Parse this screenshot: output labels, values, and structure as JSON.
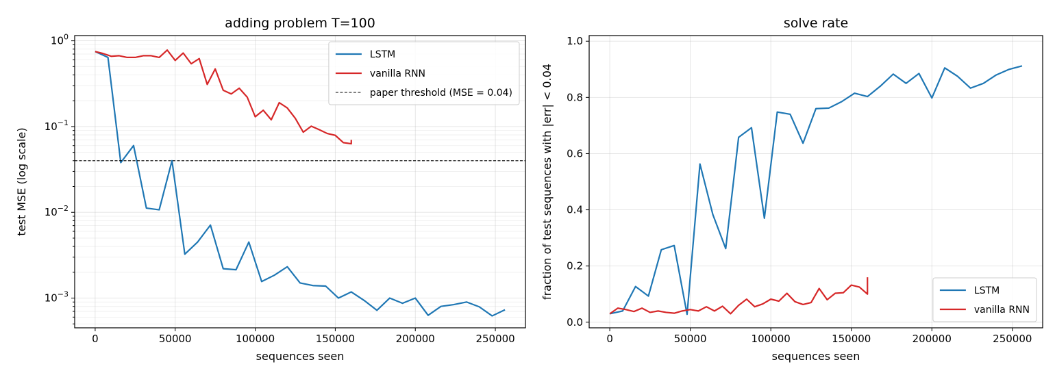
{
  "chart_data": [
    {
      "type": "line",
      "title": "adding problem  T=100",
      "xlabel": "sequences seen",
      "ylabel": "test MSE  (log scale)",
      "yscale": "log",
      "xlim": [
        -12800,
        268800
      ],
      "ylim": [
        0.00045,
        1.15
      ],
      "grid": true,
      "legend_placement": "top-right",
      "xticks": [
        0,
        50000,
        100000,
        150000,
        200000,
        250000
      ],
      "xtick_labels": [
        "0",
        "50000",
        "100000",
        "150000",
        "200000",
        "250000"
      ],
      "yticks": [
        0.001,
        0.01,
        0.1,
        1
      ],
      "ytick_labels": [
        {
          "base": "10",
          "exp": "−3"
        },
        {
          "base": "10",
          "exp": "−2"
        },
        {
          "base": "10",
          "exp": "−1"
        },
        {
          "base": "10",
          "exp": "0"
        }
      ],
      "series": [
        {
          "name": "LSTM",
          "color": "#1f77b4",
          "x": [
            0,
            8000,
            16000,
            24000,
            32000,
            40000,
            48000,
            56000,
            64000,
            72000,
            80000,
            88000,
            96000,
            104000,
            112000,
            120000,
            128000,
            136000,
            144000,
            152000,
            160000,
            168000,
            176000,
            184000,
            192000,
            200000,
            208000,
            216000,
            224000,
            232000,
            240000,
            248000,
            256000
          ],
          "y": [
            0.75,
            0.64,
            0.038,
            0.06,
            0.0112,
            0.0107,
            0.04,
            0.00325,
            0.0045,
            0.0071,
            0.0022,
            0.00214,
            0.0045,
            0.00156,
            0.00185,
            0.00232,
            0.0015,
            0.0014,
            0.00138,
            0.001,
            0.00118,
            0.00094,
            0.00072,
            0.001,
            0.00087,
            0.001,
            0.00063,
            0.0008,
            0.00084,
            0.0009,
            0.00079,
            0.00062,
            0.00073
          ]
        },
        {
          "name": "vanilla RNN",
          "color": "#d62728",
          "x": [
            0,
            5000,
            10000,
            15000,
            20000,
            25000,
            30000,
            35000,
            40000,
            45000,
            50000,
            55000,
            60000,
            65000,
            70000,
            75000,
            80000,
            85000,
            90000,
            95000,
            100000,
            105000,
            110000,
            115000,
            120000,
            125000,
            130000,
            135000,
            140000,
            145000,
            150000,
            155000,
            160000,
            160000
          ],
          "y": [
            0.75,
            0.71,
            0.66,
            0.67,
            0.64,
            0.64,
            0.67,
            0.67,
            0.64,
            0.78,
            0.59,
            0.72,
            0.54,
            0.62,
            0.31,
            0.47,
            0.265,
            0.24,
            0.28,
            0.22,
            0.13,
            0.155,
            0.12,
            0.19,
            0.165,
            0.125,
            0.086,
            0.101,
            0.092,
            0.083,
            0.079,
            0.065,
            0.063,
            0.07
          ]
        },
        {
          "name": "paper threshold (MSE = 0.04)",
          "color": "#000000",
          "style": "dashed",
          "hline": 0.04
        }
      ]
    },
    {
      "type": "line",
      "title": "solve rate",
      "xlabel": "sequences seen",
      "ylabel": "fraction of test sequences with |err| < 0.04",
      "yscale": "linear",
      "xlim": [
        -12800,
        268800
      ],
      "ylim": [
        -0.02,
        1.02
      ],
      "grid": true,
      "legend_placement": "lower-right",
      "xticks": [
        0,
        50000,
        100000,
        150000,
        200000,
        250000
      ],
      "xtick_labels": [
        "0",
        "50000",
        "100000",
        "150000",
        "200000",
        "250000"
      ],
      "yticks": [
        0.0,
        0.2,
        0.4,
        0.6,
        0.8,
        1.0
      ],
      "ytick_labels": [
        "0.0",
        "0.2",
        "0.4",
        "0.6",
        "0.8",
        "1.0"
      ],
      "series": [
        {
          "name": "LSTM",
          "color": "#1f77b4",
          "x": [
            0,
            8000,
            16000,
            24000,
            32000,
            40000,
            48000,
            56000,
            64000,
            72000,
            80000,
            88000,
            96000,
            104000,
            112000,
            120000,
            128000,
            136000,
            144000,
            152000,
            160000,
            168000,
            176000,
            184000,
            192000,
            200000,
            208000,
            216000,
            224000,
            232000,
            240000,
            248000,
            256000
          ],
          "y": [
            0.03,
            0.04,
            0.127,
            0.093,
            0.258,
            0.273,
            0.028,
            0.563,
            0.383,
            0.262,
            0.658,
            0.692,
            0.37,
            0.748,
            0.74,
            0.637,
            0.76,
            0.762,
            0.785,
            0.815,
            0.803,
            0.84,
            0.883,
            0.85,
            0.885,
            0.798,
            0.905,
            0.875,
            0.833,
            0.85,
            0.88,
            0.9,
            0.912
          ]
        },
        {
          "name": "vanilla RNN",
          "color": "#d62728",
          "x": [
            0,
            5000,
            10000,
            15000,
            20000,
            25000,
            30000,
            35000,
            40000,
            45000,
            50000,
            55000,
            60000,
            65000,
            70000,
            75000,
            80000,
            85000,
            90000,
            95000,
            100000,
            105000,
            110000,
            115000,
            120000,
            125000,
            130000,
            135000,
            140000,
            145000,
            150000,
            155000,
            160000,
            160000
          ],
          "y": [
            0.03,
            0.05,
            0.045,
            0.038,
            0.05,
            0.035,
            0.04,
            0.035,
            0.032,
            0.04,
            0.045,
            0.04,
            0.055,
            0.04,
            0.057,
            0.03,
            0.06,
            0.082,
            0.055,
            0.065,
            0.082,
            0.075,
            0.103,
            0.073,
            0.063,
            0.07,
            0.12,
            0.08,
            0.103,
            0.105,
            0.132,
            0.125,
            0.1,
            0.16
          ]
        }
      ]
    }
  ]
}
